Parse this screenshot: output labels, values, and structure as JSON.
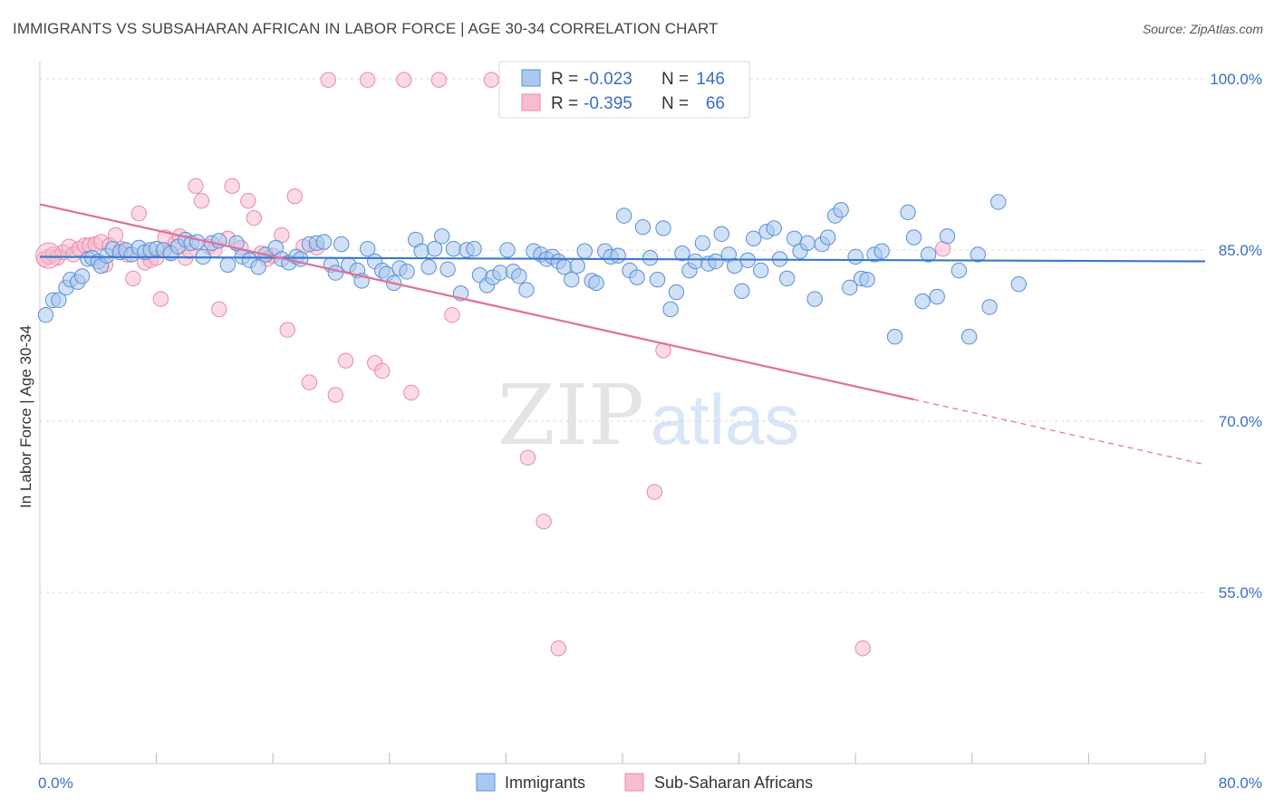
{
  "title": "IMMIGRANTS VS SUBSAHARAN AFRICAN IN LABOR FORCE | AGE 30-34 CORRELATION CHART",
  "source": "Source: ZipAtlas.com",
  "watermark": {
    "zip": "ZIP",
    "atlas": "atlas"
  },
  "colors": {
    "immigrants_fill": "#a9c8ef",
    "immigrants_stroke": "#5a8fd6",
    "immigrants_line": "#3a78d0",
    "africans_fill": "#f7bcd0",
    "africans_stroke": "#e88aab",
    "africans_line": "#e0709a",
    "tick_text": "#3a6fc1"
  },
  "legend_top": {
    "rows": [
      {
        "r_label": "R =",
        "r_value": "-0.023",
        "n_label": "N =",
        "n_value": "146"
      },
      {
        "r_label": "R =",
        "r_value": "-0.395",
        "n_label": "N =",
        "n_value": "66"
      }
    ]
  },
  "chart_data": {
    "type": "scatter",
    "title": "IMMIGRANTS VS SUBSAHARAN AFRICAN IN LABOR FORCE | AGE 30-34 CORRELATION CHART",
    "xlabel": "",
    "ylabel": "In Labor Force | Age 30-34",
    "xlim": [
      0,
      80
    ],
    "ylim": [
      40,
      101.5
    ],
    "x_tick_labels": [
      "0.0%",
      "80.0%"
    ],
    "y_ticks": [
      55,
      70,
      85,
      100
    ],
    "y_tick_labels": [
      "55.0%",
      "70.0%",
      "85.0%",
      "100.0%"
    ],
    "grid": true,
    "legend_position": "top-center",
    "series": [
      {
        "name": "Immigrants",
        "r": -0.023,
        "n": 146,
        "trend": {
          "x": [
            0,
            80
          ],
          "y": [
            84.4,
            84.0
          ],
          "solid_until": 80
        },
        "points": [
          [
            0.4,
            79.3
          ],
          [
            0.9,
            80.6
          ],
          [
            1.3,
            80.6
          ],
          [
            1.8,
            81.7
          ],
          [
            2.1,
            82.4
          ],
          [
            2.6,
            82.2
          ],
          [
            2.9,
            82.7
          ],
          [
            3.3,
            84.2
          ],
          [
            3.6,
            84.3
          ],
          [
            4.0,
            84.0
          ],
          [
            4.2,
            83.6
          ],
          [
            4.6,
            84.5
          ],
          [
            5.0,
            85.1
          ],
          [
            5.5,
            84.8
          ],
          [
            5.9,
            85.0
          ],
          [
            6.3,
            84.6
          ],
          [
            6.8,
            85.2
          ],
          [
            7.2,
            84.8
          ],
          [
            7.6,
            85.0
          ],
          [
            8.0,
            85.1
          ],
          [
            8.5,
            85.0
          ],
          [
            9.0,
            84.7
          ],
          [
            9.5,
            85.3
          ],
          [
            10.0,
            85.9
          ],
          [
            10.4,
            85.6
          ],
          [
            10.8,
            85.7
          ],
          [
            11.2,
            84.4
          ],
          [
            11.8,
            85.6
          ],
          [
            12.3,
            85.8
          ],
          [
            12.9,
            83.7
          ],
          [
            13.5,
            85.6
          ],
          [
            13.9,
            84.4
          ],
          [
            14.4,
            84.1
          ],
          [
            15.0,
            83.5
          ],
          [
            15.5,
            84.6
          ],
          [
            16.2,
            85.2
          ],
          [
            16.6,
            84.2
          ],
          [
            17.1,
            83.9
          ],
          [
            17.6,
            84.4
          ],
          [
            17.9,
            84.2
          ],
          [
            18.5,
            85.5
          ],
          [
            19.0,
            85.6
          ],
          [
            19.5,
            85.7
          ],
          [
            20.0,
            83.7
          ],
          [
            20.3,
            83.0
          ],
          [
            20.7,
            85.5
          ],
          [
            21.2,
            83.7
          ],
          [
            21.8,
            83.2
          ],
          [
            22.1,
            82.3
          ],
          [
            22.5,
            85.1
          ],
          [
            23.0,
            84.0
          ],
          [
            23.5,
            83.2
          ],
          [
            23.8,
            82.9
          ],
          [
            24.3,
            82.1
          ],
          [
            24.7,
            83.4
          ],
          [
            25.2,
            83.1
          ],
          [
            25.8,
            85.9
          ],
          [
            26.2,
            84.9
          ],
          [
            26.7,
            83.5
          ],
          [
            27.1,
            85.1
          ],
          [
            27.6,
            86.2
          ],
          [
            28.0,
            83.3
          ],
          [
            28.4,
            85.1
          ],
          [
            28.9,
            81.2
          ],
          [
            29.3,
            85.0
          ],
          [
            29.8,
            85.1
          ],
          [
            30.2,
            82.8
          ],
          [
            30.7,
            81.9
          ],
          [
            31.1,
            82.6
          ],
          [
            31.6,
            83.0
          ],
          [
            32.1,
            85.0
          ],
          [
            32.5,
            83.1
          ],
          [
            32.9,
            82.7
          ],
          [
            33.4,
            81.5
          ],
          [
            33.9,
            84.9
          ],
          [
            34.4,
            84.6
          ],
          [
            34.8,
            84.2
          ],
          [
            35.2,
            84.4
          ],
          [
            35.6,
            84.0
          ],
          [
            36.0,
            83.5
          ],
          [
            36.5,
            82.4
          ],
          [
            36.9,
            83.6
          ],
          [
            37.4,
            84.9
          ],
          [
            37.9,
            82.3
          ],
          [
            38.2,
            82.1
          ],
          [
            38.8,
            84.9
          ],
          [
            39.2,
            84.4
          ],
          [
            39.7,
            84.5
          ],
          [
            40.1,
            88.0
          ],
          [
            40.5,
            83.2
          ],
          [
            41.0,
            82.6
          ],
          [
            41.4,
            87.0
          ],
          [
            41.9,
            84.3
          ],
          [
            42.4,
            82.4
          ],
          [
            42.8,
            86.9
          ],
          [
            43.3,
            79.8
          ],
          [
            43.7,
            81.3
          ],
          [
            44.1,
            84.7
          ],
          [
            44.6,
            83.2
          ],
          [
            45.0,
            84.0
          ],
          [
            45.5,
            85.6
          ],
          [
            45.9,
            83.8
          ],
          [
            46.4,
            84.0
          ],
          [
            46.8,
            86.4
          ],
          [
            47.3,
            84.6
          ],
          [
            47.7,
            83.6
          ],
          [
            48.2,
            81.4
          ],
          [
            48.6,
            84.1
          ],
          [
            49.0,
            86.0
          ],
          [
            49.5,
            83.2
          ],
          [
            49.9,
            86.6
          ],
          [
            50.4,
            86.9
          ],
          [
            50.8,
            84.2
          ],
          [
            51.3,
            82.5
          ],
          [
            51.8,
            86.0
          ],
          [
            52.2,
            84.9
          ],
          [
            52.7,
            85.6
          ],
          [
            53.2,
            80.7
          ],
          [
            53.7,
            85.5
          ],
          [
            54.1,
            86.1
          ],
          [
            54.6,
            88.0
          ],
          [
            55.0,
            88.5
          ],
          [
            55.6,
            81.7
          ],
          [
            56.0,
            84.4
          ],
          [
            56.4,
            82.5
          ],
          [
            56.8,
            82.4
          ],
          [
            57.3,
            84.6
          ],
          [
            57.8,
            84.9
          ],
          [
            58.7,
            77.4
          ],
          [
            59.6,
            88.3
          ],
          [
            60.0,
            86.1
          ],
          [
            60.6,
            80.5
          ],
          [
            61.0,
            84.6
          ],
          [
            61.6,
            80.9
          ],
          [
            62.3,
            86.2
          ],
          [
            63.1,
            83.2
          ],
          [
            63.8,
            77.4
          ],
          [
            64.4,
            84.6
          ],
          [
            65.2,
            80.0
          ],
          [
            65.8,
            89.2
          ],
          [
            67.2,
            82.0
          ]
        ]
      },
      {
        "name": "Sub-Saharan Africans",
        "r": -0.395,
        "n": 66,
        "trend": {
          "x": [
            0,
            80
          ],
          "y": [
            89.0,
            66.2
          ],
          "solid_until": 60
        },
        "points": [
          [
            0.3,
            84.2
          ],
          [
            0.6,
            84.4
          ],
          [
            0.9,
            84.6
          ],
          [
            1.2,
            84.3
          ],
          [
            1.6,
            84.8
          ],
          [
            2.0,
            85.3
          ],
          [
            2.3,
            84.6
          ],
          [
            2.7,
            85.1
          ],
          [
            3.1,
            85.4
          ],
          [
            3.4,
            85.4
          ],
          [
            3.8,
            85.5
          ],
          [
            4.2,
            85.7
          ],
          [
            4.5,
            83.7
          ],
          [
            4.8,
            85.4
          ],
          [
            5.2,
            86.3
          ],
          [
            5.6,
            85.1
          ],
          [
            6.0,
            84.6
          ],
          [
            6.4,
            82.5
          ],
          [
            6.8,
            88.2
          ],
          [
            7.2,
            83.9
          ],
          [
            7.6,
            84.1
          ],
          [
            8.0,
            84.3
          ],
          [
            8.3,
            80.7
          ],
          [
            8.6,
            86.1
          ],
          [
            8.9,
            84.8
          ],
          [
            9.3,
            85.6
          ],
          [
            9.6,
            86.2
          ],
          [
            10.0,
            84.3
          ],
          [
            10.3,
            84.9
          ],
          [
            10.7,
            90.6
          ],
          [
            11.1,
            89.3
          ],
          [
            11.6,
            85.3
          ],
          [
            12.0,
            85.0
          ],
          [
            12.3,
            79.8
          ],
          [
            12.9,
            86.0
          ],
          [
            13.2,
            90.6
          ],
          [
            13.8,
            85.2
          ],
          [
            14.3,
            89.3
          ],
          [
            14.7,
            87.8
          ],
          [
            15.2,
            84.7
          ],
          [
            15.6,
            84.2
          ],
          [
            16.0,
            84.5
          ],
          [
            16.6,
            86.3
          ],
          [
            17.0,
            78.0
          ],
          [
            17.5,
            89.7
          ],
          [
            18.1,
            85.3
          ],
          [
            18.5,
            73.4
          ],
          [
            19.0,
            85.2
          ],
          [
            19.8,
            99.9
          ],
          [
            20.3,
            72.3
          ],
          [
            21.0,
            75.3
          ],
          [
            22.5,
            99.9
          ],
          [
            23.0,
            75.1
          ],
          [
            23.5,
            74.4
          ],
          [
            25.0,
            99.9
          ],
          [
            25.5,
            72.5
          ],
          [
            27.4,
            99.9
          ],
          [
            28.3,
            79.3
          ],
          [
            31.0,
            99.9
          ],
          [
            33.5,
            66.8
          ],
          [
            34.6,
            61.2
          ],
          [
            35.6,
            50.1
          ],
          [
            42.2,
            63.8
          ],
          [
            42.8,
            76.2
          ],
          [
            56.5,
            50.1
          ],
          [
            62.0,
            85.1
          ]
        ]
      }
    ]
  }
}
